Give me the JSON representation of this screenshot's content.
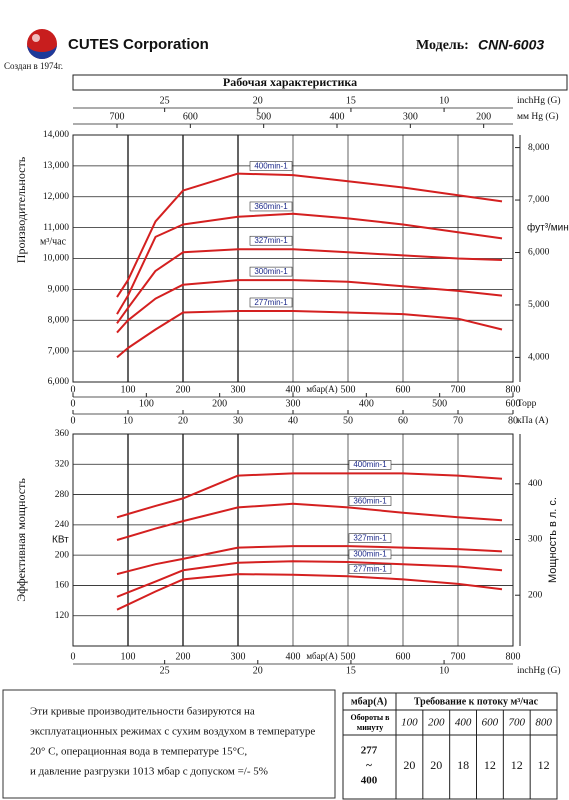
{
  "header": {
    "company": "CUTES Corporation",
    "model_label": "Модель:",
    "model": "CNN-6003",
    "founded": "Создан в 1974г."
  },
  "chart_data": [
    {
      "type": "line",
      "title": "Рабочая характеристика",
      "y_label": "Производительность",
      "y_unit": "м³/час",
      "y2_label": "фут³/мин",
      "x_label": "мбар(A)",
      "xlim": [
        0,
        800
      ],
      "xticks": [
        0,
        100,
        200,
        300,
        400,
        500,
        600,
        700,
        800
      ],
      "top_axes": [
        {
          "label": "inchHg (G)",
          "xlim": [
            29.92,
            6.3
          ],
          "xticks": [
            25,
            20,
            15,
            10
          ]
        },
        {
          "label": "мм Hg (G)",
          "xlim": [
            760,
            160
          ],
          "xticks": [
            700,
            600,
            500,
            400,
            300,
            200
          ]
        }
      ],
      "bottom_axes": [
        {
          "label": "Торр",
          "xlim": [
            0,
            600
          ],
          "xticks": [
            0,
            100,
            200,
            300,
            400,
            500,
            600
          ]
        },
        {
          "label": "кПа (А)",
          "xlim": [
            0,
            80
          ],
          "xticks": [
            0,
            10,
            20,
            30,
            40,
            50,
            60,
            70,
            80
          ]
        }
      ],
      "ylim": [
        6000,
        14000
      ],
      "yticks": [
        {
          "value": 6000,
          "label": "6,000"
        },
        {
          "value": 7000,
          "label": "7,000"
        },
        {
          "value": 8000,
          "label": "8,000"
        },
        {
          "value": 9000,
          "label": "9,000"
        },
        {
          "value": 10000,
          "label": "10,000"
        },
        {
          "value": 11000,
          "label": "11,000"
        },
        {
          "value": 12000,
          "label": "12,000"
        },
        {
          "value": 13000,
          "label": "13,000"
        },
        {
          "value": 14000,
          "label": "14,000"
        }
      ],
      "y2lim": [
        3531,
        8240
      ],
      "y2ticks": [
        {
          "value": 4000,
          "label": "4,000"
        },
        {
          "value": 5000,
          "label": "5,000"
        },
        {
          "value": 6000,
          "label": "6,000"
        },
        {
          "value": 7000,
          "label": "7,000"
        },
        {
          "value": 8000,
          "label": "8,000"
        }
      ],
      "grid": true,
      "x": [
        80,
        100,
        150,
        200,
        300,
        400,
        500,
        600,
        700,
        780
      ],
      "series": [
        {
          "name": "400min-1",
          "color": "#d42020",
          "values": [
            8750,
            9300,
            11200,
            12200,
            12750,
            12700,
            12500,
            12300,
            12050,
            11850
          ]
        },
        {
          "name": "360min-1",
          "color": "#d42020",
          "values": [
            8200,
            8800,
            10700,
            11100,
            11350,
            11450,
            11300,
            11100,
            10850,
            10650
          ]
        },
        {
          "name": "327min-1",
          "color": "#d42020",
          "values": [
            7900,
            8400,
            9600,
            10200,
            10300,
            10300,
            10200,
            10100,
            10000,
            9950
          ]
        },
        {
          "name": "300min-1",
          "color": "#d42020",
          "values": [
            7600,
            8000,
            8700,
            9150,
            9300,
            9300,
            9250,
            9100,
            8950,
            8800
          ]
        },
        {
          "name": "277min-1",
          "color": "#d42020",
          "values": [
            6800,
            7100,
            7700,
            8250,
            8300,
            8300,
            8250,
            8200,
            8050,
            7700
          ]
        }
      ]
    },
    {
      "type": "line",
      "y_label": "Эффективная мощность",
      "y_unit": "КВт",
      "y2_label": "Мощность в л. с.",
      "x_label": "мбар(А)",
      "xlim": [
        0,
        800
      ],
      "xticks": [
        0,
        100,
        200,
        300,
        400,
        500,
        600,
        700,
        800
      ],
      "bottom_axes": [
        {
          "label": "inchHg (G)",
          "xlim": [
            29.92,
            6.3
          ],
          "xticks": [
            25,
            20,
            15,
            10
          ]
        }
      ],
      "ylim": [
        80,
        360
      ],
      "yticks": [
        120,
        160,
        200,
        240,
        280,
        320,
        360
      ],
      "y2lim": [
        108.8,
        489.5
      ],
      "y2ticks": [
        200,
        300,
        400
      ],
      "grid": true,
      "x": [
        80,
        150,
        200,
        300,
        400,
        500,
        600,
        700,
        780
      ],
      "series": [
        {
          "name": "400min-1",
          "color": "#d42020",
          "values": [
            250,
            265,
            275,
            305,
            308,
            308,
            308,
            305,
            301
          ]
        },
        {
          "name": "360min-1",
          "color": "#d42020",
          "values": [
            220,
            235,
            245,
            263,
            268,
            263,
            256,
            250,
            246
          ]
        },
        {
          "name": "327min-1",
          "color": "#d42020",
          "values": [
            175,
            188,
            195,
            210,
            212,
            212,
            210,
            208,
            205
          ]
        },
        {
          "name": "300min-1",
          "color": "#d42020",
          "values": [
            145,
            165,
            180,
            190,
            192,
            191,
            188,
            185,
            180
          ]
        },
        {
          "name": "277min-1",
          "color": "#d42020",
          "values": [
            128,
            152,
            168,
            175,
            174,
            172,
            168,
            162,
            155
          ]
        }
      ]
    }
  ],
  "footer": {
    "notes": [
      "Эти кривые производительности базируются на",
      "эксплуатационных режимах с сухим воздухом в температуре",
      "20° C, операционная вода в температуре 15°C,",
      "и давление разгрузки 1013 мбар с допуском =/- 5%"
    ],
    "table": {
      "corner": "мбар(A)",
      "header": "Требование к потоку м³/час",
      "row_label": "Обороты в минуту",
      "columns": [
        100,
        200,
        400,
        600,
        700,
        800
      ],
      "speed": [
        "277",
        "~",
        "400"
      ],
      "values": [
        20,
        20,
        18,
        12,
        12,
        12
      ]
    }
  }
}
